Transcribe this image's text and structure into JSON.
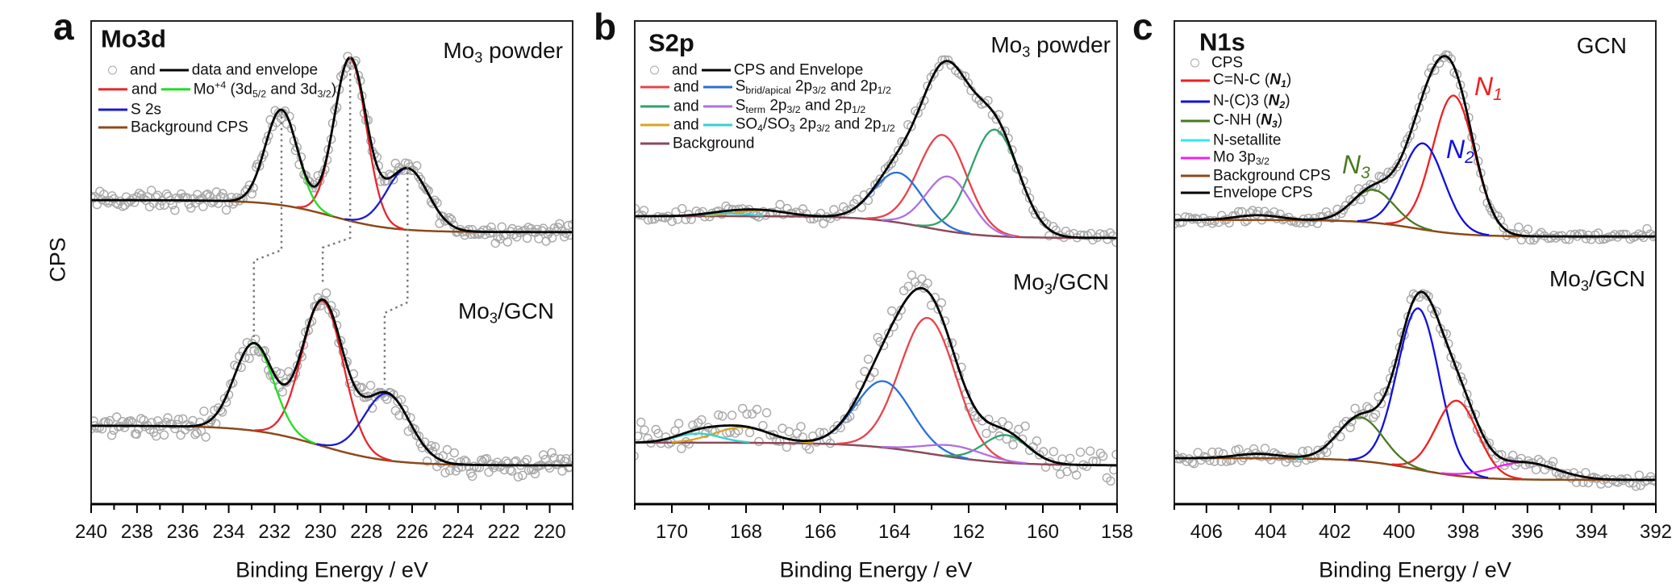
{
  "chart_data": [
    {
      "type": "line",
      "panel_label": "a",
      "title": "Mo3d",
      "xlabel": "Binding Energy / eV",
      "ylabel": "CPS",
      "xlim": [
        240,
        219
      ],
      "ylim": [
        0,
        100
      ],
      "x_reversed": true,
      "grid": false,
      "xticks": [
        "240",
        "238",
        "236",
        "234",
        "232",
        "230",
        "228",
        "226",
        "224",
        "222",
        "220"
      ],
      "xtick_values": [
        240,
        238,
        236,
        234,
        232,
        230,
        228,
        226,
        224,
        222,
        220
      ],
      "legend": {
        "placement": "top-left",
        "rows": [
          {
            "markers": [
              {
                "kind": "circle",
                "color": "#aaaaaa"
              },
              {
                "kind": "line",
                "color": "#000000"
              }
            ],
            "joiner": "and",
            "text": [
              [
                "data and envelope",
                ""
              ]
            ]
          },
          {
            "markers": [
              {
                "kind": "line",
                "color": "#e8262b"
              },
              {
                "kind": "line",
                "color": "#22dd22"
              }
            ],
            "joiner": "and",
            "text": [
              [
                "Mo",
                ""
              ],
              [
                "+4",
                "sup"
              ],
              [
                " (3d",
                ""
              ],
              [
                "5/2",
                "sub"
              ],
              [
                " and 3d",
                ""
              ],
              [
                "3/2",
                "sub"
              ],
              [
                ")",
                ""
              ]
            ]
          },
          {
            "markers": [
              {
                "kind": "line",
                "color": "#1a1ad0"
              }
            ],
            "joiner": "",
            "text": [
              [
                "S 2s",
                ""
              ]
            ]
          },
          {
            "markers": [
              {
                "kind": "line",
                "color": "#8b4a1c"
              }
            ],
            "joiner": "",
            "text": [
              [
                "Background CPS",
                ""
              ]
            ]
          }
        ]
      },
      "spectra": [
        {
          "label": [
            [
              "Mo",
              ""
            ],
            [
              "3",
              "sub"
            ],
            [
              " powder",
              ""
            ]
          ],
          "background": {
            "left": 62.8,
            "right": 56.2,
            "center": 229.5,
            "width": 1.3,
            "color": "#8b4a1c"
          },
          "components": [
            {
              "color": "#e8262b",
              "center": 228.7,
              "height": 33.5,
              "sigma": 0.7
            },
            {
              "color": "#22dd22",
              "center": 231.7,
              "height": 19.7,
              "sigma": 0.7
            },
            {
              "color": "#1a1ad0",
              "center": 226.2,
              "height": 12.7,
              "sigma": 0.9
            }
          ]
        },
        {
          "label": [
            [
              "Mo",
              ""
            ],
            [
              "3",
              "sub"
            ],
            [
              "/GCN",
              ""
            ]
          ],
          "background": {
            "left": 16.2,
            "right": 8.0,
            "center": 230.0,
            "width": 1.5,
            "color": "#8b4a1c"
          },
          "components": [
            {
              "color": "#e8262b",
              "center": 229.9,
              "height": 30.0,
              "sigma": 0.9
            },
            {
              "color": "#22dd22",
              "center": 232.9,
              "height": 18.0,
              "sigma": 0.85
            },
            {
              "color": "#1a1ad0",
              "center": 227.1,
              "height": 13.8,
              "sigma": 1.0
            }
          ]
        }
      ],
      "guide_lines": [
        [
          [
            231.7,
            81.2
          ],
          [
            231.7,
            52.5
          ],
          [
            232.9,
            50.3
          ],
          [
            232.9,
            34.2
          ]
        ],
        [
          [
            228.7,
            92.5
          ],
          [
            228.7,
            55.0
          ],
          [
            229.9,
            53.0
          ],
          [
            229.9,
            45.3
          ]
        ],
        [
          [
            226.2,
            69.7
          ],
          [
            226.2,
            41.7
          ],
          [
            227.2,
            39.5
          ],
          [
            227.2,
            24.7
          ]
        ]
      ]
    },
    {
      "type": "line",
      "panel_label": "b",
      "title": "S2p",
      "xlabel": "Binding Energy / eV",
      "xlim": [
        171,
        158
      ],
      "ylim": [
        0,
        100
      ],
      "x_reversed": true,
      "grid": false,
      "xticks": [
        "170",
        "168",
        "166",
        "164",
        "162",
        "160",
        "158"
      ],
      "xtick_values": [
        170,
        168,
        166,
        164,
        162,
        160,
        158
      ],
      "legend": {
        "placement": "top-left",
        "rows": [
          {
            "markers": [
              {
                "kind": "circle",
                "color": "#aaaaaa"
              },
              {
                "kind": "line",
                "color": "#000000"
              }
            ],
            "joiner": "and",
            "text": [
              [
                "CPS and Envelope",
                ""
              ]
            ]
          },
          {
            "markers": [
              {
                "kind": "line",
                "color": "#e8434a"
              },
              {
                "kind": "line",
                "color": "#2a6fd6"
              }
            ],
            "joiner": "and",
            "text": [
              [
                "S",
                ""
              ],
              [
                "brid/apical",
                "sub"
              ],
              [
                " 2p",
                ""
              ],
              [
                "3/2",
                "sub"
              ],
              [
                " and 2p",
                ""
              ],
              [
                "1/2",
                "sub"
              ]
            ]
          },
          {
            "markers": [
              {
                "kind": "line",
                "color": "#2ea36a"
              },
              {
                "kind": "line",
                "color": "#b070e0"
              }
            ],
            "joiner": "and",
            "text": [
              [
                "S",
                ""
              ],
              [
                "term",
                "sub"
              ],
              [
                " 2p",
                ""
              ],
              [
                "3/2",
                "sub"
              ],
              [
                " and 2p",
                ""
              ],
              [
                "1/2",
                "sub"
              ]
            ]
          },
          {
            "markers": [
              {
                "kind": "line",
                "color": "#d9a520"
              },
              {
                "kind": "line",
                "color": "#35d0d0"
              }
            ],
            "joiner": "and",
            "text": [
              [
                "SO",
                ""
              ],
              [
                "4",
                "sub"
              ],
              [
                "/SO",
                ""
              ],
              [
                "3",
                "sub"
              ],
              [
                " 2p",
                ""
              ],
              [
                "3/2",
                "sub"
              ],
              [
                " and 2p",
                ""
              ],
              [
                "1/2",
                "sub"
              ]
            ]
          },
          {
            "markers": [
              {
                "kind": "line",
                "color": "#8b4a5a"
              }
            ],
            "joiner": "",
            "text": [
              [
                "Background",
                ""
              ]
            ]
          }
        ]
      },
      "spectra": [
        {
          "label": [
            [
              "Mo",
              ""
            ],
            [
              "3",
              "sub"
            ],
            [
              " powder",
              ""
            ]
          ],
          "background": {
            "left": 59.5,
            "right": 55.0,
            "center": 163.2,
            "width": 0.8,
            "color": "#8b4a5a"
          },
          "components": [
            {
              "color": "#e8434a",
              "center": 162.7,
              "height": 19.7,
              "sigma": 0.65
            },
            {
              "color": "#2a6fd6",
              "center": 163.9,
              "height": 10.3,
              "sigma": 0.65
            },
            {
              "color": "#2ea36a",
              "center": 161.3,
              "height": 22.0,
              "sigma": 0.65
            },
            {
              "color": "#b070e0",
              "center": 162.55,
              "height": 11.3,
              "sigma": 0.6
            },
            {
              "color": "#d9a520",
              "center": 167.6,
              "height": 1.2,
              "sigma": 0.7
            },
            {
              "color": "#35d0d0",
              "center": 168.6,
              "height": 0.6,
              "sigma": 0.6
            }
          ]
        },
        {
          "label": [
            [
              "Mo",
              ""
            ],
            [
              "3",
              "sub"
            ],
            [
              "/GCN",
              ""
            ]
          ],
          "background": {
            "left": 12.7,
            "right": 8.0,
            "center": 163.0,
            "width": 1.0,
            "color": "#8b4a5a"
          },
          "components": [
            {
              "color": "#e8434a",
              "center": 163.1,
              "height": 28.0,
              "sigma": 0.75
            },
            {
              "color": "#2a6fd6",
              "center": 164.3,
              "height": 13.7,
              "sigma": 0.75
            },
            {
              "color": "#2ea36a",
              "center": 161.0,
              "height": 5.7,
              "sigma": 0.6
            },
            {
              "color": "#b070e0",
              "center": 162.4,
              "height": 2.4,
              "sigma": 0.8
            },
            {
              "color": "#d9a520",
              "center": 168.1,
              "height": 3.2,
              "sigma": 0.75
            },
            {
              "color": "#35d0d0",
              "center": 169.3,
              "height": 1.9,
              "sigma": 0.6
            }
          ]
        }
      ]
    },
    {
      "type": "line",
      "panel_label": "c",
      "title": "N1s",
      "xlabel": "Binding Energy / eV",
      "xlim": [
        407,
        392
      ],
      "ylim": [
        0,
        100
      ],
      "x_reversed": true,
      "grid": false,
      "xticks": [
        "406",
        "404",
        "402",
        "400",
        "398",
        "396",
        "394",
        "392"
      ],
      "xtick_values": [
        406,
        404,
        402,
        400,
        398,
        396,
        394,
        392
      ],
      "legend": {
        "placement": "top-left",
        "rows": [
          {
            "markers": [
              {
                "kind": "circle",
                "color": "#aaaaaa"
              }
            ],
            "joiner": "",
            "text": [
              [
                "CPS",
                ""
              ]
            ]
          },
          {
            "markers": [
              {
                "kind": "line",
                "color": "#ee2020"
              }
            ],
            "joiner": "",
            "text": [
              [
                "C=N-C (",
                ""
              ],
              [
                "N",
                "bi"
              ],
              [
                "1",
                "bisub"
              ],
              [
                ")",
                ""
              ]
            ]
          },
          {
            "markers": [
              {
                "kind": "line",
                "color": "#1010e0"
              }
            ],
            "joiner": "",
            "text": [
              [
                "N-(C)3 (",
                ""
              ],
              [
                "N",
                "bi"
              ],
              [
                "2",
                "bisub"
              ],
              [
                ")",
                ""
              ]
            ]
          },
          {
            "markers": [
              {
                "kind": "line",
                "color": "#4a7a20"
              }
            ],
            "joiner": "",
            "text": [
              [
                "C-NH (",
                ""
              ],
              [
                "N",
                "bi"
              ],
              [
                "3",
                "bisub"
              ],
              [
                ")",
                ""
              ]
            ]
          },
          {
            "markers": [
              {
                "kind": "line",
                "color": "#30e8f0"
              }
            ],
            "joiner": "",
            "text": [
              [
                "N-setallite",
                ""
              ]
            ]
          },
          {
            "markers": [
              {
                "kind": "line",
                "color": "#f020f0"
              }
            ],
            "joiner": "",
            "text": [
              [
                "Mo 3p",
                ""
              ],
              [
                "3/2",
                "sub"
              ]
            ]
          },
          {
            "markers": [
              {
                "kind": "line",
                "color": "#8b4a1c"
              }
            ],
            "joiner": "",
            "text": [
              [
                "Background CPS",
                ""
              ]
            ]
          },
          {
            "markers": [
              {
                "kind": "line",
                "color": "#000000"
              }
            ],
            "joiner": "",
            "text": [
              [
                "Envelope CPS",
                ""
              ]
            ]
          }
        ]
      },
      "annotations": [
        {
          "text": [
            [
              "N",
              ""
            ],
            [
              "1",
              "sub"
            ]
          ],
          "color": "#ee2020"
        },
        {
          "text": [
            [
              "N",
              ""
            ],
            [
              "2",
              "sub"
            ]
          ],
          "color": "#1010e0"
        },
        {
          "text": [
            [
              "N",
              ""
            ],
            [
              "3",
              "sub"
            ]
          ],
          "color": "#4a7a20"
        }
      ],
      "spectra": [
        {
          "label": [
            [
              "GCN",
              ""
            ]
          ],
          "background": {
            "left": 58.7,
            "right": 55.3,
            "center": 399.5,
            "width": 0.8,
            "color": "#8b4a1c"
          },
          "components": [
            {
              "color": "#ee2020",
              "center": 398.3,
              "height": 28.5,
              "sigma": 0.65
            },
            {
              "color": "#1010e0",
              "center": 399.25,
              "height": 17.8,
              "sigma": 0.65
            },
            {
              "color": "#4a7a20",
              "center": 400.8,
              "height": 6.8,
              "sigma": 0.65
            },
            {
              "color": "#30e8f0",
              "center": 404.4,
              "height": 1.0,
              "sigma": 0.7
            }
          ]
        },
        {
          "label": [
            [
              "Mo",
              ""
            ],
            [
              "3",
              "sub"
            ],
            [
              "/GCN",
              ""
            ]
          ],
          "background": {
            "left": 9.5,
            "right": 5.0,
            "center": 399.5,
            "width": 0.9,
            "color": "#8b4a1c"
          },
          "components": [
            {
              "color": "#1010e0",
              "center": 399.4,
              "height": 33.3,
              "sigma": 0.65
            },
            {
              "color": "#ee2020",
              "center": 398.2,
              "height": 15.5,
              "sigma": 0.65
            },
            {
              "color": "#4a7a20",
              "center": 401.2,
              "height": 9.0,
              "sigma": 0.7
            },
            {
              "color": "#f020f0",
              "center": 396.1,
              "height": 3.5,
              "sigma": 1.0
            },
            {
              "color": "#30e8f0",
              "center": 404.4,
              "height": 0.9,
              "sigma": 0.7
            }
          ]
        }
      ]
    }
  ]
}
